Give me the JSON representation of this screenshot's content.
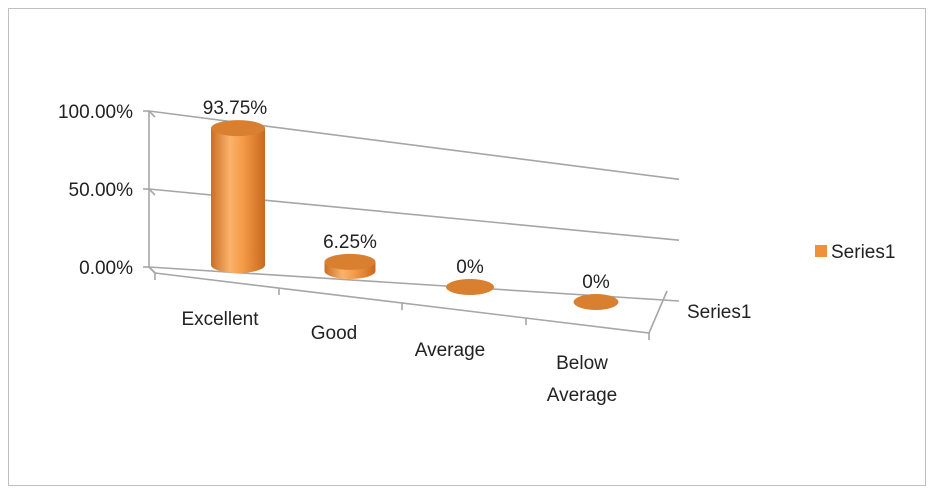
{
  "chart_data": {
    "type": "bar",
    "style": "3d-cylinder",
    "categories": [
      "Excellent",
      "Good",
      "Average",
      "Below Average"
    ],
    "category_lines": [
      [
        "Excellent"
      ],
      [
        "Good"
      ],
      [
        "Average"
      ],
      [
        "Below",
        "Average"
      ]
    ],
    "series": [
      {
        "name": "Series1",
        "values": [
          93.75,
          6.25,
          0,
          0
        ]
      }
    ],
    "data_labels": [
      "93.75%",
      "6.25%",
      "0%",
      "0%"
    ],
    "y_ticks": [
      "0.00%",
      "50.00%",
      "100.00%"
    ],
    "y_tick_values": [
      0,
      50,
      100
    ],
    "ylim": [
      0,
      100
    ],
    "depth_axis_label": "Series1",
    "legend": {
      "position": "right",
      "entries": [
        "Series1"
      ]
    },
    "grid": true,
    "colors": {
      "bar": "#f0913a",
      "bar_light": "#fbc58a",
      "bar_dark": "#b95f1c",
      "top": "#d98030",
      "grid": "#a6a6a6"
    }
  }
}
